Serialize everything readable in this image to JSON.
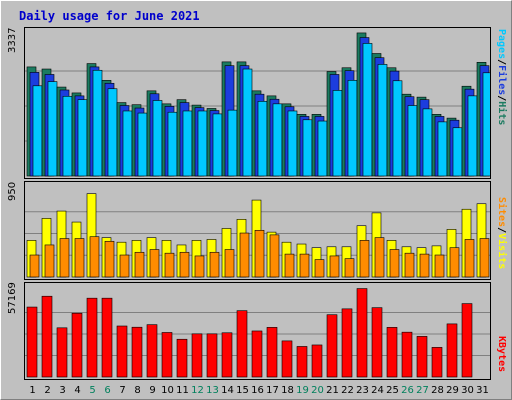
{
  "title": "Daily usage for June 2021",
  "chart_data": [
    {
      "type": "bar",
      "panel": "hits-files-pages",
      "ymax_label": "3337",
      "ymax": 3337,
      "categories": [
        "1",
        "2",
        "3",
        "4",
        "5",
        "6",
        "7",
        "8",
        "9",
        "10",
        "11",
        "12",
        "13",
        "14",
        "15",
        "16",
        "17",
        "18",
        "19",
        "20",
        "21",
        "22",
        "23",
        "24",
        "25",
        "26",
        "27",
        "28",
        "29",
        "30",
        "31"
      ],
      "legend": [
        "Pages",
        "/",
        "Files",
        "/",
        "Hits"
      ],
      "series": [
        {
          "name": "Hits",
          "color": "#1b7b60",
          "values": [
            2600,
            2550,
            2120,
            1980,
            2680,
            2280,
            1750,
            1700,
            2030,
            1720,
            1820,
            1690,
            1610,
            2720,
            2720,
            2030,
            1910,
            1720,
            1470,
            1470,
            2490,
            2580,
            3410,
            2920,
            2580,
            1950,
            1880,
            1470,
            1380,
            2140,
            2710
          ]
        },
        {
          "name": "Files",
          "color": "#1c3dde",
          "values": [
            2470,
            2420,
            2050,
            1910,
            2600,
            2210,
            1680,
            1620,
            1960,
            1660,
            1750,
            1630,
            1560,
            2630,
            2630,
            1950,
            1830,
            1650,
            1420,
            1420,
            2420,
            2510,
            3300,
            2820,
            2500,
            1890,
            1820,
            1420,
            1330,
            2070,
            2630
          ]
        },
        {
          "name": "Pages",
          "color": "#00c8ff",
          "values": [
            2150,
            2250,
            1900,
            1820,
            2520,
            2080,
            1550,
            1500,
            1800,
            1520,
            1550,
            1550,
            1480,
            1570,
            2550,
            1780,
            1720,
            1550,
            1340,
            1310,
            2040,
            2280,
            3160,
            2660,
            2270,
            1680,
            1600,
            1290,
            1150,
            1910,
            2460
          ]
        }
      ]
    },
    {
      "type": "bar",
      "panel": "visits-sites",
      "ymax_label": "950",
      "ymax": 950,
      "categories": [
        "1",
        "2",
        "3",
        "4",
        "5",
        "6",
        "7",
        "8",
        "9",
        "10",
        "11",
        "12",
        "13",
        "14",
        "15",
        "16",
        "17",
        "18",
        "19",
        "20",
        "21",
        "22",
        "23",
        "24",
        "25",
        "26",
        "27",
        "28",
        "29",
        "30",
        "31"
      ],
      "legend": [
        "Sites",
        "/",
        "Visits"
      ],
      "series": [
        {
          "name": "Visits",
          "color": "#ffff00",
          "values": [
            400,
            640,
            720,
            600,
            910,
            430,
            380,
            400,
            430,
            400,
            350,
            400,
            410,
            530,
            630,
            840,
            490,
            380,
            360,
            320,
            330,
            330,
            560,
            700,
            400,
            330,
            320,
            340,
            520,
            740,
            800
          ]
        },
        {
          "name": "Sites",
          "color": "#ff8c00",
          "values": [
            240,
            350,
            420,
            420,
            440,
            390,
            240,
            270,
            300,
            260,
            270,
            230,
            270,
            300,
            480,
            510,
            460,
            250,
            250,
            190,
            230,
            200,
            400,
            430,
            300,
            260,
            250,
            240,
            320,
            410,
            420
          ]
        }
      ]
    },
    {
      "type": "bar",
      "panel": "kbytes",
      "ymax_label": "57169",
      "ymax": 57169,
      "categories": [
        "1",
        "2",
        "3",
        "4",
        "5",
        "6",
        "7",
        "8",
        "9",
        "10",
        "11",
        "12",
        "13",
        "14",
        "15",
        "16",
        "17",
        "18",
        "19",
        "20",
        "21",
        "22",
        "23",
        "24",
        "25",
        "26",
        "27",
        "28",
        "29",
        "30",
        "31"
      ],
      "legend": [
        "KBytes"
      ],
      "series": [
        {
          "name": "KBytes",
          "color": "#ff0000",
          "values": [
            46500,
            53700,
            32700,
            42400,
            52400,
            52400,
            33900,
            33100,
            34800,
            29600,
            25100,
            28700,
            28700,
            29400,
            44100,
            30600,
            33000,
            24000,
            20300,
            21300,
            41400,
            45300,
            58800,
            46100,
            33000,
            29800,
            27000,
            19700,
            35300,
            48800,
            0
          ]
        }
      ]
    }
  ],
  "x_labels": [
    "1",
    "2",
    "3",
    "4",
    "5",
    "6",
    "7",
    "8",
    "9",
    "10",
    "11",
    "12",
    "13",
    "14",
    "15",
    "16",
    "17",
    "18",
    "19",
    "20",
    "21",
    "22",
    "23",
    "24",
    "25",
    "26",
    "27",
    "28",
    "29",
    "30",
    "31"
  ],
  "weekend_color": "#00805c",
  "weekend_days": [
    "5",
    "6",
    "12",
    "13",
    "19",
    "20",
    "26",
    "27"
  ]
}
